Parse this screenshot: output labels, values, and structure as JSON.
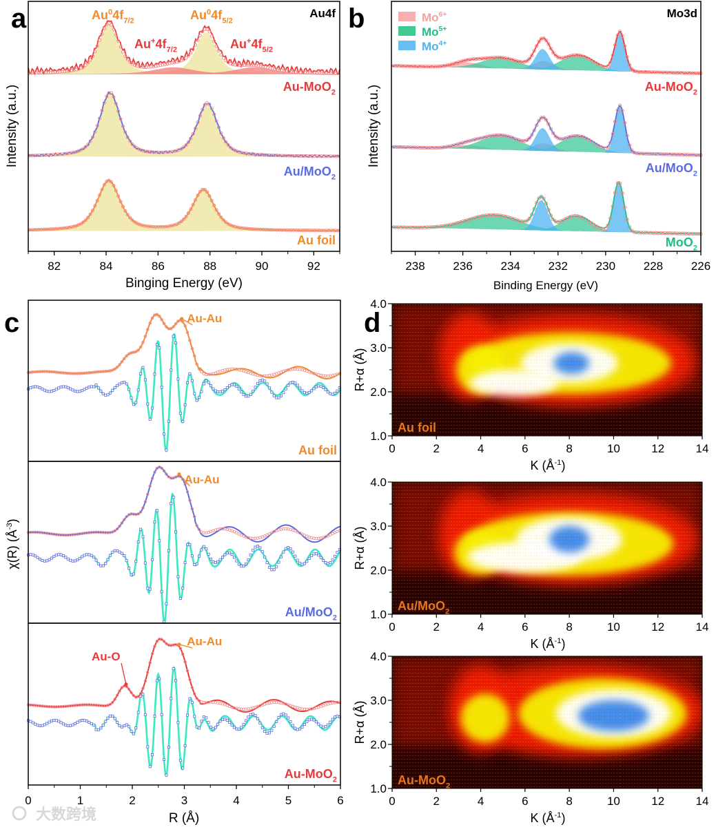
{
  "figure": {
    "panel_letters": [
      "a",
      "b",
      "c",
      "d"
    ],
    "watermark": "大数跨境"
  },
  "colors": {
    "au_moo2": "#e8393a",
    "au_on_moo2": "#5a6be0",
    "au_foil": "#f08a2a",
    "moo2": "#1fbf80",
    "fit_marker": "#f08a8a",
    "au0_fill": "#efe7a6",
    "au_plus_fill": "#f07a7a",
    "mo6": "#f5a0a0",
    "mo5": "#3cc99a",
    "mo4": "#4db3f0",
    "im_fit": "#3de8c0",
    "im_marker": "#5a6be0"
  },
  "chart_data": [
    {
      "id": "a",
      "type": "line",
      "title": "Au4f",
      "xlabel": "Binging Energy (eV)",
      "ylabel": "Intensity (a.u.)",
      "xlim": [
        81,
        93
      ],
      "xticks": [
        "82",
        "84",
        "86",
        "88",
        "90",
        "92"
      ],
      "xtick_values": [
        82,
        84,
        86,
        88,
        90,
        92
      ],
      "peak_labels": [
        {
          "main": "Au",
          "sup": "0",
          "mid": "4f",
          "sub": "7/2",
          "color": "#f08a2a",
          "x": 84.1
        },
        {
          "main": "Au",
          "sup": "0",
          "mid": "4f",
          "sub": "5/2",
          "color": "#f08a2a",
          "x": 87.9
        },
        {
          "main": "Au",
          "sup": "+",
          "mid": "4f",
          "sub": "7/2",
          "color": "#e8393a",
          "x": 86.6
        },
        {
          "main": "Au",
          "sup": "+",
          "mid": "4f",
          "sub": "5/2",
          "color": "#e8393a",
          "x": 90.2
        }
      ],
      "series": [
        {
          "name": "Au-MoO",
          "sub": "2",
          "color": "#e8393a",
          "offset": 2.34,
          "noise": 0.05,
          "components": [
            {
              "state": "Au0",
              "center": 84.1,
              "height": 0.66,
              "fwhm": 0.95
            },
            {
              "state": "Au0",
              "center": 87.85,
              "height": 0.55,
              "fwhm": 0.95
            },
            {
              "state": "Au+",
              "center": 86.6,
              "height": 0.09,
              "fwhm": 1.8
            },
            {
              "state": "Au+",
              "center": 89.7,
              "height": 0.09,
              "fwhm": 1.8
            }
          ]
        },
        {
          "name": "Au/MoO",
          "sub": "2",
          "color": "#5a6be0",
          "offset": 1.25,
          "noise": 0.02,
          "components": [
            {
              "state": "Au0",
              "center": 84.15,
              "height": 0.84,
              "fwhm": 0.95
            },
            {
              "state": "Au0",
              "center": 87.9,
              "height": 0.7,
              "fwhm": 0.95
            }
          ]
        },
        {
          "name": "Au foil",
          "sub": "",
          "color": "#f08a2a",
          "offset": 0.27,
          "noise": 0.004,
          "components": [
            {
              "state": "Au0",
              "center": 84.1,
              "height": 0.66,
              "fwhm": 1.05
            },
            {
              "state": "Au0",
              "center": 87.75,
              "height": 0.54,
              "fwhm": 1.0
            }
          ]
        }
      ]
    },
    {
      "id": "b",
      "type": "line",
      "title": "Mo3d",
      "xlabel": "Binding Energy (eV)",
      "ylabel": "Intensity (a.u.)",
      "xlim": [
        239,
        226
      ],
      "xticks": [
        "238",
        "236",
        "234",
        "232",
        "230",
        "228",
        "226"
      ],
      "xtick_values": [
        238,
        236,
        234,
        232,
        230,
        228,
        226
      ],
      "legend": [
        {
          "label": "Mo",
          "sup": "6+",
          "color": "#f5a0a0"
        },
        {
          "label": "Mo",
          "sup": "5+",
          "color": "#1fbf80"
        },
        {
          "label": "Mo",
          "sup": "4+",
          "color": "#4db3f0"
        }
      ],
      "legend_position": "top-left",
      "series": [
        {
          "name": "Au-MoO",
          "sub": "2",
          "color": "#e8393a",
          "offset_left": 2.45,
          "offset_right": 2.35,
          "components": [
            {
              "state": "Mo6+",
              "center": 235.8,
              "height": 0.07,
              "fwhm": 1.3
            },
            {
              "state": "Mo6+",
              "center": 232.6,
              "height": 0.11,
              "fwhm": 1.0
            },
            {
              "state": "Mo5+",
              "center": 234.4,
              "height": 0.14,
              "fwhm": 1.9
            },
            {
              "state": "Mo5+",
              "center": 231.2,
              "height": 0.2,
              "fwhm": 1.6
            },
            {
              "state": "Mo4+",
              "center": 232.65,
              "height": 0.27,
              "fwhm": 0.7
            },
            {
              "state": "Mo4+",
              "center": 229.4,
              "height": 0.52,
              "fwhm": 0.5
            }
          ]
        },
        {
          "name": "Au/MoO",
          "sub": "2",
          "color": "#5a6be0",
          "offset_left": 1.38,
          "offset_right": 1.27,
          "components": [
            {
              "state": "Mo6+",
              "center": 235.8,
              "height": 0.05,
              "fwhm": 1.3
            },
            {
              "state": "Mo6+",
              "center": 232.6,
              "height": 0.1,
              "fwhm": 1.0
            },
            {
              "state": "Mo5+",
              "center": 234.4,
              "height": 0.19,
              "fwhm": 2.0
            },
            {
              "state": "Mo5+",
              "center": 231.2,
              "height": 0.21,
              "fwhm": 1.6
            },
            {
              "state": "Mo4+",
              "center": 232.65,
              "height": 0.3,
              "fwhm": 0.7
            },
            {
              "state": "Mo4+",
              "center": 229.4,
              "height": 0.62,
              "fwhm": 0.5
            }
          ]
        },
        {
          "name": "MoO",
          "sub": "2",
          "color": "#1fbf80",
          "offset_left": 0.32,
          "offset_right": 0.23,
          "components": [
            {
              "state": "Mo5+",
              "center": 234.7,
              "height": 0.19,
              "fwhm": 2.6
            },
            {
              "state": "Mo5+",
              "center": 231.25,
              "height": 0.2,
              "fwhm": 1.4
            },
            {
              "state": "Mo4+",
              "center": 232.7,
              "height": 0.4,
              "fwhm": 0.65
            },
            {
              "state": "Mo4+",
              "center": 229.45,
              "height": 0.66,
              "fwhm": 0.5
            }
          ]
        }
      ]
    },
    {
      "id": "c",
      "type": "line",
      "xlabel": "R (Å)",
      "ylabel": "χ(R) (Å",
      "ylabel_sup": "-3",
      "ylabel_end": ")",
      "xlim": [
        0,
        6
      ],
      "xticks": [
        "0",
        "1",
        "2",
        "3",
        "4",
        "5",
        "6"
      ],
      "xtick_values": [
        0,
        1,
        2,
        3,
        4,
        5,
        6
      ],
      "subpanels": [
        {
          "name": "Au foil",
          "sub": "",
          "color": "#f08a2a",
          "magnitude": {
            "offset": 1.29,
            "peaks": [
              {
                "r": 1.95,
                "h": 0.25,
                "s": 0.15
              },
              {
                "r": 2.45,
                "h": 0.83,
                "s": 0.2
              },
              {
                "r": 2.95,
                "h": 0.71,
                "s": 0.17
              }
            ],
            "tail_amp": 0.05
          },
          "imaginary": {
            "offset": 1.05,
            "amp": 0.82,
            "center": 2.65,
            "sigma": 0.33,
            "freq": 3.2,
            "tail_amp": 0.09
          },
          "annotations": [
            {
              "text": "Au-Au",
              "color": "#f08a2a",
              "r": 3.05,
              "arrow_to_r": 2.95
            }
          ]
        },
        {
          "name": "Au/MoO",
          "sub": "2",
          "color": "#5a6be0",
          "magnitude": {
            "offset": 1.3,
            "peaks": [
              {
                "r": 1.95,
                "h": 0.28,
                "s": 0.15
              },
              {
                "r": 2.5,
                "h": 0.92,
                "s": 0.2
              },
              {
                "r": 2.95,
                "h": 0.75,
                "s": 0.17
              }
            ],
            "tail_amp": 0.07
          },
          "imaginary": {
            "offset": 0.95,
            "amp": 0.9,
            "center": 2.62,
            "sigma": 0.33,
            "freq": 3.2,
            "tail_amp": 0.12
          },
          "annotations": [
            {
              "text": "Au-Au",
              "color": "#f08a2a",
              "r": 3.0,
              "arrow_to_r": 2.9
            }
          ]
        },
        {
          "name": "Au-MoO",
          "sub": "2",
          "color": "#e8393a",
          "magnitude": {
            "offset": 1.15,
            "peaks": [
              {
                "r": 1.85,
                "h": 0.3,
                "s": 0.13
              },
              {
                "r": 2.5,
                "h": 0.9,
                "s": 0.18
              },
              {
                "r": 2.9,
                "h": 0.8,
                "s": 0.17
              }
            ],
            "tail_amp": 0.05
          },
          "imaginary": {
            "offset": 0.9,
            "amp": 0.85,
            "center": 2.65,
            "sigma": 0.35,
            "freq": 3.2,
            "tail_amp": 0.1
          },
          "annotations": [
            {
              "text": "Au-Au",
              "color": "#f08a2a",
              "r": 3.05,
              "arrow_to_r": 2.9
            },
            {
              "text": "Au-O",
              "color": "#e8393a",
              "r": 1.55,
              "arrow_to_r": 1.88
            }
          ]
        }
      ]
    },
    {
      "id": "d",
      "type": "heatmap",
      "xlabel": "K (Å",
      "xlabel_sup": "-1",
      "xlabel_end": ")",
      "ylabel": "R+α (Å)",
      "xlim": [
        0,
        14
      ],
      "ylim": [
        1.0,
        4.0
      ],
      "xticks": [
        "0",
        "2",
        "4",
        "6",
        "8",
        "10",
        "12",
        "14"
      ],
      "xtick_values": [
        0,
        2,
        4,
        6,
        8,
        10,
        12,
        14
      ],
      "yticks": [
        "1.0",
        "2.0",
        "3.0",
        "4.0"
      ],
      "ytick_values": [
        1,
        2,
        3,
        4
      ],
      "maps": [
        {
          "name": "Au foil",
          "sub": "",
          "blobs": [
            {
              "k": 8.2,
              "r": 2.7,
              "rk": 5.5,
              "rr": 1.05,
              "level": "red"
            },
            {
              "k": 3.5,
              "r": 2.8,
              "rk": 1.4,
              "rr": 1.0,
              "level": "red"
            },
            {
              "k": 8.0,
              "r": 2.65,
              "rk": 4.6,
              "rr": 0.7,
              "level": "yellow"
            },
            {
              "k": 4.0,
              "r": 2.5,
              "rk": 1.1,
              "rr": 0.55,
              "level": "yellow"
            },
            {
              "k": 5.5,
              "r": 2.2,
              "rk": 2.0,
              "rr": 0.3,
              "level": "white"
            },
            {
              "k": 8.0,
              "r": 2.65,
              "rk": 2.2,
              "rr": 0.45,
              "level": "white"
            },
            {
              "k": 8.1,
              "r": 2.65,
              "rk": 0.8,
              "rr": 0.25,
              "level": "blue"
            }
          ]
        },
        {
          "name": "Au/MoO",
          "sub": "2",
          "blobs": [
            {
              "k": 8.2,
              "r": 2.7,
              "rk": 5.6,
              "rr": 1.05,
              "level": "red"
            },
            {
              "k": 3.5,
              "r": 2.8,
              "rk": 1.4,
              "rr": 1.0,
              "level": "red"
            },
            {
              "k": 8.0,
              "r": 2.6,
              "rk": 4.7,
              "rr": 0.72,
              "level": "yellow"
            },
            {
              "k": 4.0,
              "r": 2.4,
              "rk": 1.2,
              "rr": 0.5,
              "level": "yellow"
            },
            {
              "k": 6.0,
              "r": 2.3,
              "rk": 2.6,
              "rr": 0.35,
              "level": "white"
            },
            {
              "k": 8.0,
              "r": 2.7,
              "rk": 2.4,
              "rr": 0.5,
              "level": "white"
            },
            {
              "k": 8.0,
              "r": 2.7,
              "rk": 0.9,
              "rr": 0.3,
              "level": "blue"
            }
          ]
        },
        {
          "name": "Au-MoO",
          "sub": "2",
          "blobs": [
            {
              "k": 8.5,
              "r": 2.75,
              "rk": 5.6,
              "rr": 1.05,
              "level": "red"
            },
            {
              "k": 4.0,
              "r": 2.8,
              "rk": 1.4,
              "rr": 1.0,
              "level": "red"
            },
            {
              "k": 9.5,
              "r": 2.7,
              "rk": 3.8,
              "rr": 0.8,
              "level": "yellow"
            },
            {
              "k": 4.2,
              "r": 2.6,
              "rk": 1.1,
              "rr": 0.55,
              "level": "yellow"
            },
            {
              "k": 10.0,
              "r": 2.7,
              "rk": 2.6,
              "rr": 0.55,
              "level": "white"
            },
            {
              "k": 10.0,
              "r": 2.65,
              "rk": 1.6,
              "rr": 0.35,
              "level": "blue"
            }
          ]
        }
      ]
    }
  ]
}
